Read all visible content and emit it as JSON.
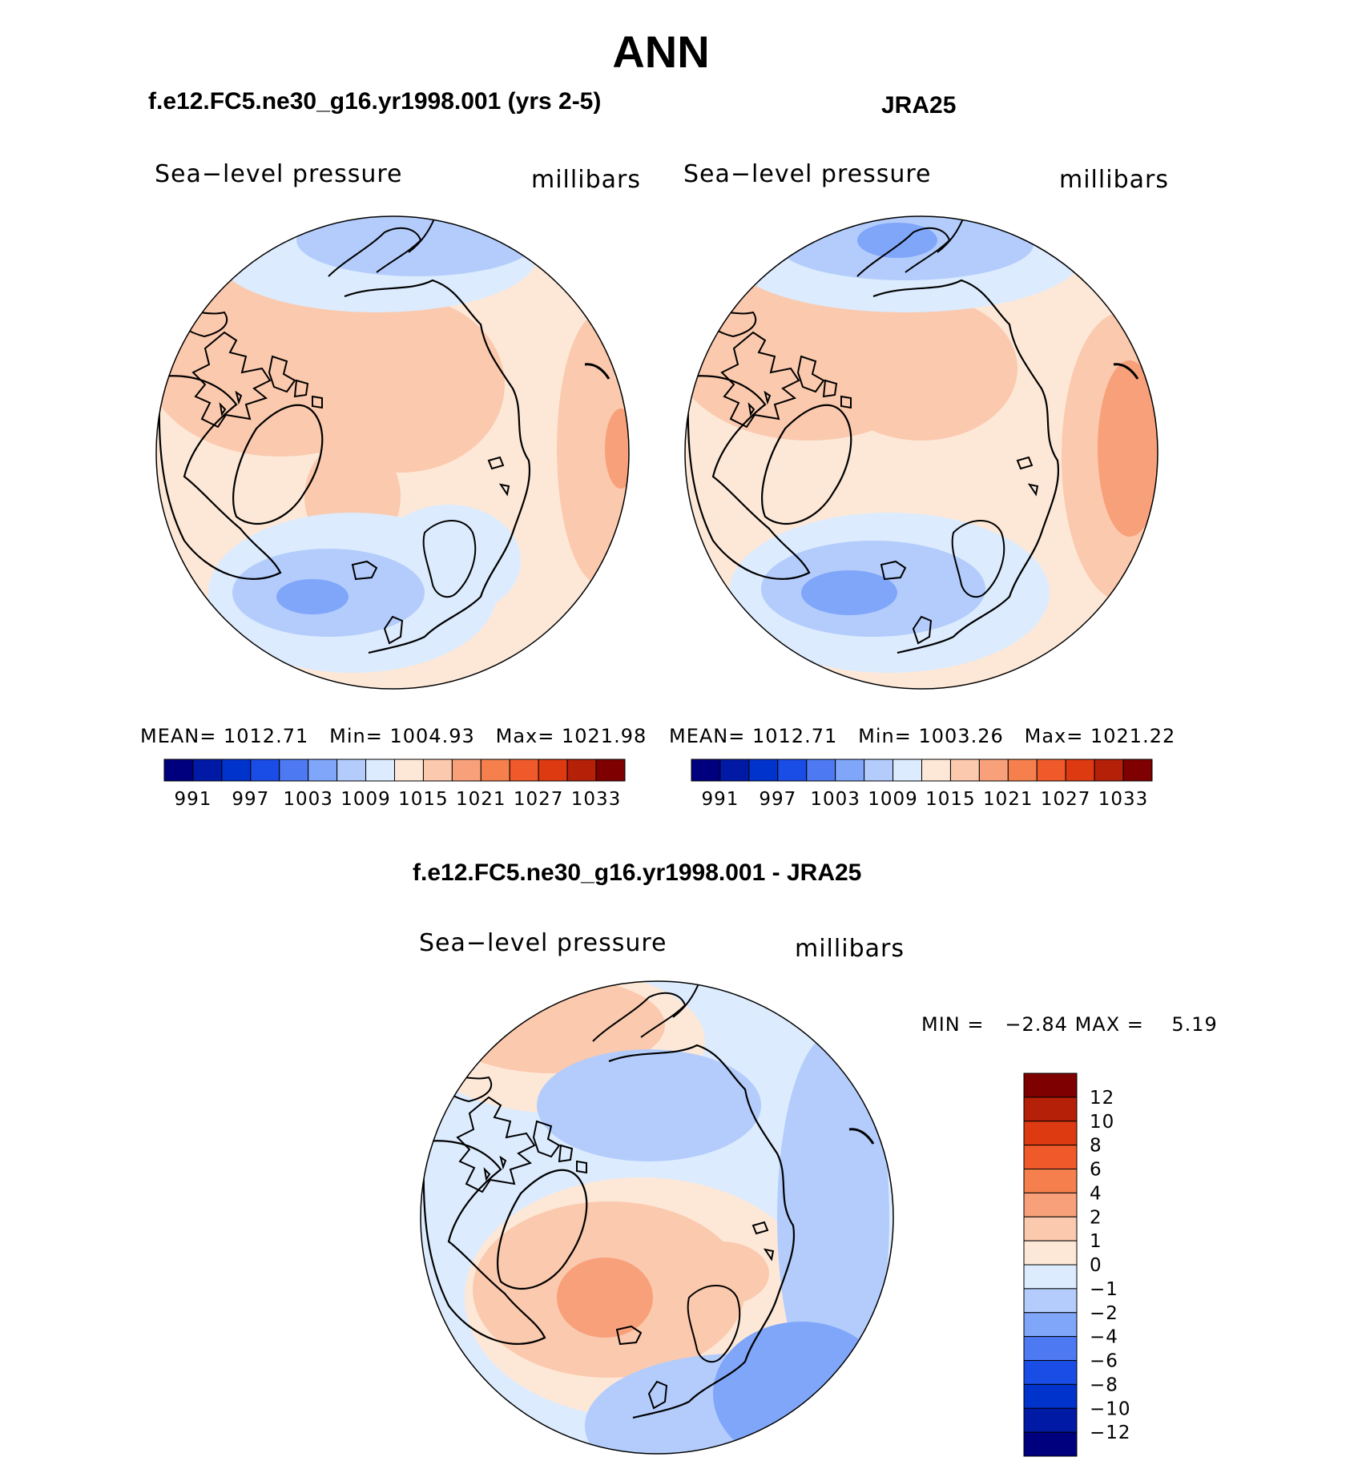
{
  "title": "ANN",
  "panels": [
    {
      "id": "model",
      "heading": "f.e12.FC5.ne30_g16.yr1998.001 (yrs 2-5)",
      "variable": "Sea−level pressure",
      "units": "millibars",
      "stats": {
        "mean_label": "MEAN=",
        "mean": "1012.71",
        "min_label": "Min=",
        "min": "1004.93",
        "max_label": "Max=",
        "max": "1021.98"
      }
    },
    {
      "id": "obs",
      "heading": "JRA25",
      "variable": "Sea−level pressure",
      "units": "millibars",
      "stats": {
        "mean_label": "MEAN=",
        "mean": "1012.71",
        "min_label": "Min=",
        "min": "1003.26",
        "max_label": "Max=",
        "max": "1021.22"
      }
    },
    {
      "id": "diff",
      "heading": "f.e12.FC5.ne30_g16.yr1998.001 - JRA25",
      "variable": "Sea−level pressure",
      "units": "millibars",
      "stats": {
        "min_label": "MIN =",
        "min": "−2.84",
        "max_label": "MAX =",
        "max": "5.19"
      }
    }
  ],
  "colorbar_abs": {
    "colors": [
      "#00007f",
      "#001aa6",
      "#0033cc",
      "#1a4de6",
      "#4d79f2",
      "#80a6fa",
      "#b3ccfc",
      "#dcebfd",
      "#fde8d8",
      "#fbc9ad",
      "#f8a07a",
      "#f5804d",
      "#f05a2a",
      "#dd3a12",
      "#b52008",
      "#7f0000"
    ],
    "labels": [
      "991",
      "997",
      "1003",
      "1009",
      "1015",
      "1021",
      "1027",
      "1033"
    ]
  },
  "colorbar_diff": {
    "colors": [
      "#00007f",
      "#001aa6",
      "#0033cc",
      "#1a4de6",
      "#4d79f2",
      "#80a6fa",
      "#b3ccfc",
      "#dcebfd",
      "#fde8d8",
      "#fbc9ad",
      "#f8a07a",
      "#f5804d",
      "#f05a2a",
      "#dd3a12",
      "#b52008",
      "#7f0000"
    ],
    "labels": [
      "12",
      "10",
      "8",
      "6",
      "4",
      "2",
      "1",
      "0",
      "−1",
      "−2",
      "−4",
      "−6",
      "−8",
      "−10",
      "−12"
    ]
  }
}
